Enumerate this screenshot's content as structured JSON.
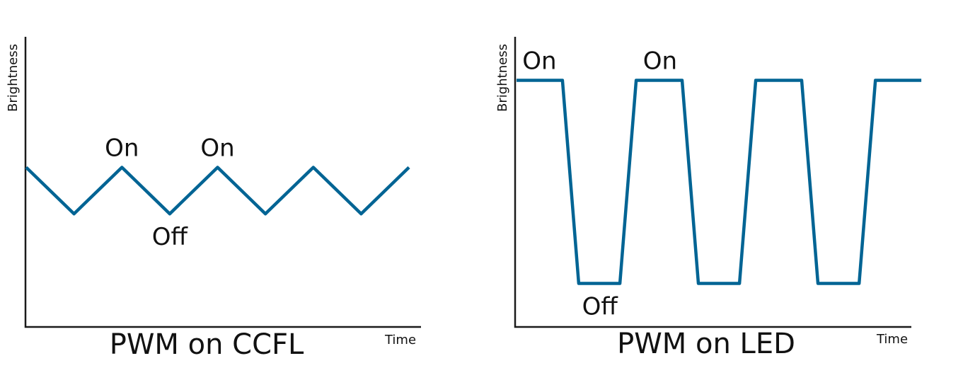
{
  "colors": {
    "line": "#006494",
    "axis": "#1a1a1a"
  },
  "chart_data": [
    {
      "type": "line",
      "title": "PWM on CCFL",
      "xlabel": "Time",
      "ylabel": "Brightness",
      "xlim": [
        0,
        4
      ],
      "ylim": [
        0,
        1
      ],
      "grid": false,
      "series": [
        {
          "x": [
            0,
            0.5,
            1,
            1.5,
            2,
            2.5,
            3,
            3.5,
            4
          ],
          "y": [
            0.55,
            0.39,
            0.55,
            0.39,
            0.55,
            0.39,
            0.55,
            0.39,
            0.55
          ]
        }
      ],
      "annotations": [
        {
          "text": "On",
          "x": 1,
          "y": 0.55,
          "position": "above"
        },
        {
          "text": "On",
          "x": 2,
          "y": 0.55,
          "position": "above"
        },
        {
          "text": "Off",
          "x": 1.5,
          "y": 0.39,
          "position": "below"
        }
      ]
    },
    {
      "type": "line",
      "title": "PWM on LED",
      "xlabel": "Time",
      "ylabel": "Brightness",
      "xlim": [
        0,
        4
      ],
      "ylim": [
        0,
        1
      ],
      "grid": false,
      "series": [
        {
          "x": [
            0,
            0.48,
            0.65,
            1.08,
            1.25,
            1.73,
            1.9,
            2.33,
            2.5,
            2.98,
            3.15,
            3.58,
            3.75,
            4.23
          ],
          "y": [
            0.85,
            0.85,
            0.15,
            0.15,
            0.85,
            0.85,
            0.15,
            0.15,
            0.85,
            0.85,
            0.15,
            0.15,
            0.85,
            0.85
          ]
        }
      ],
      "annotations": [
        {
          "text": "On",
          "x": 0.24,
          "y": 0.85,
          "position": "above"
        },
        {
          "text": "On",
          "x": 1.5,
          "y": 0.85,
          "position": "above"
        },
        {
          "text": "Off",
          "x": 0.87,
          "y": 0.15,
          "position": "below"
        }
      ]
    }
  ]
}
